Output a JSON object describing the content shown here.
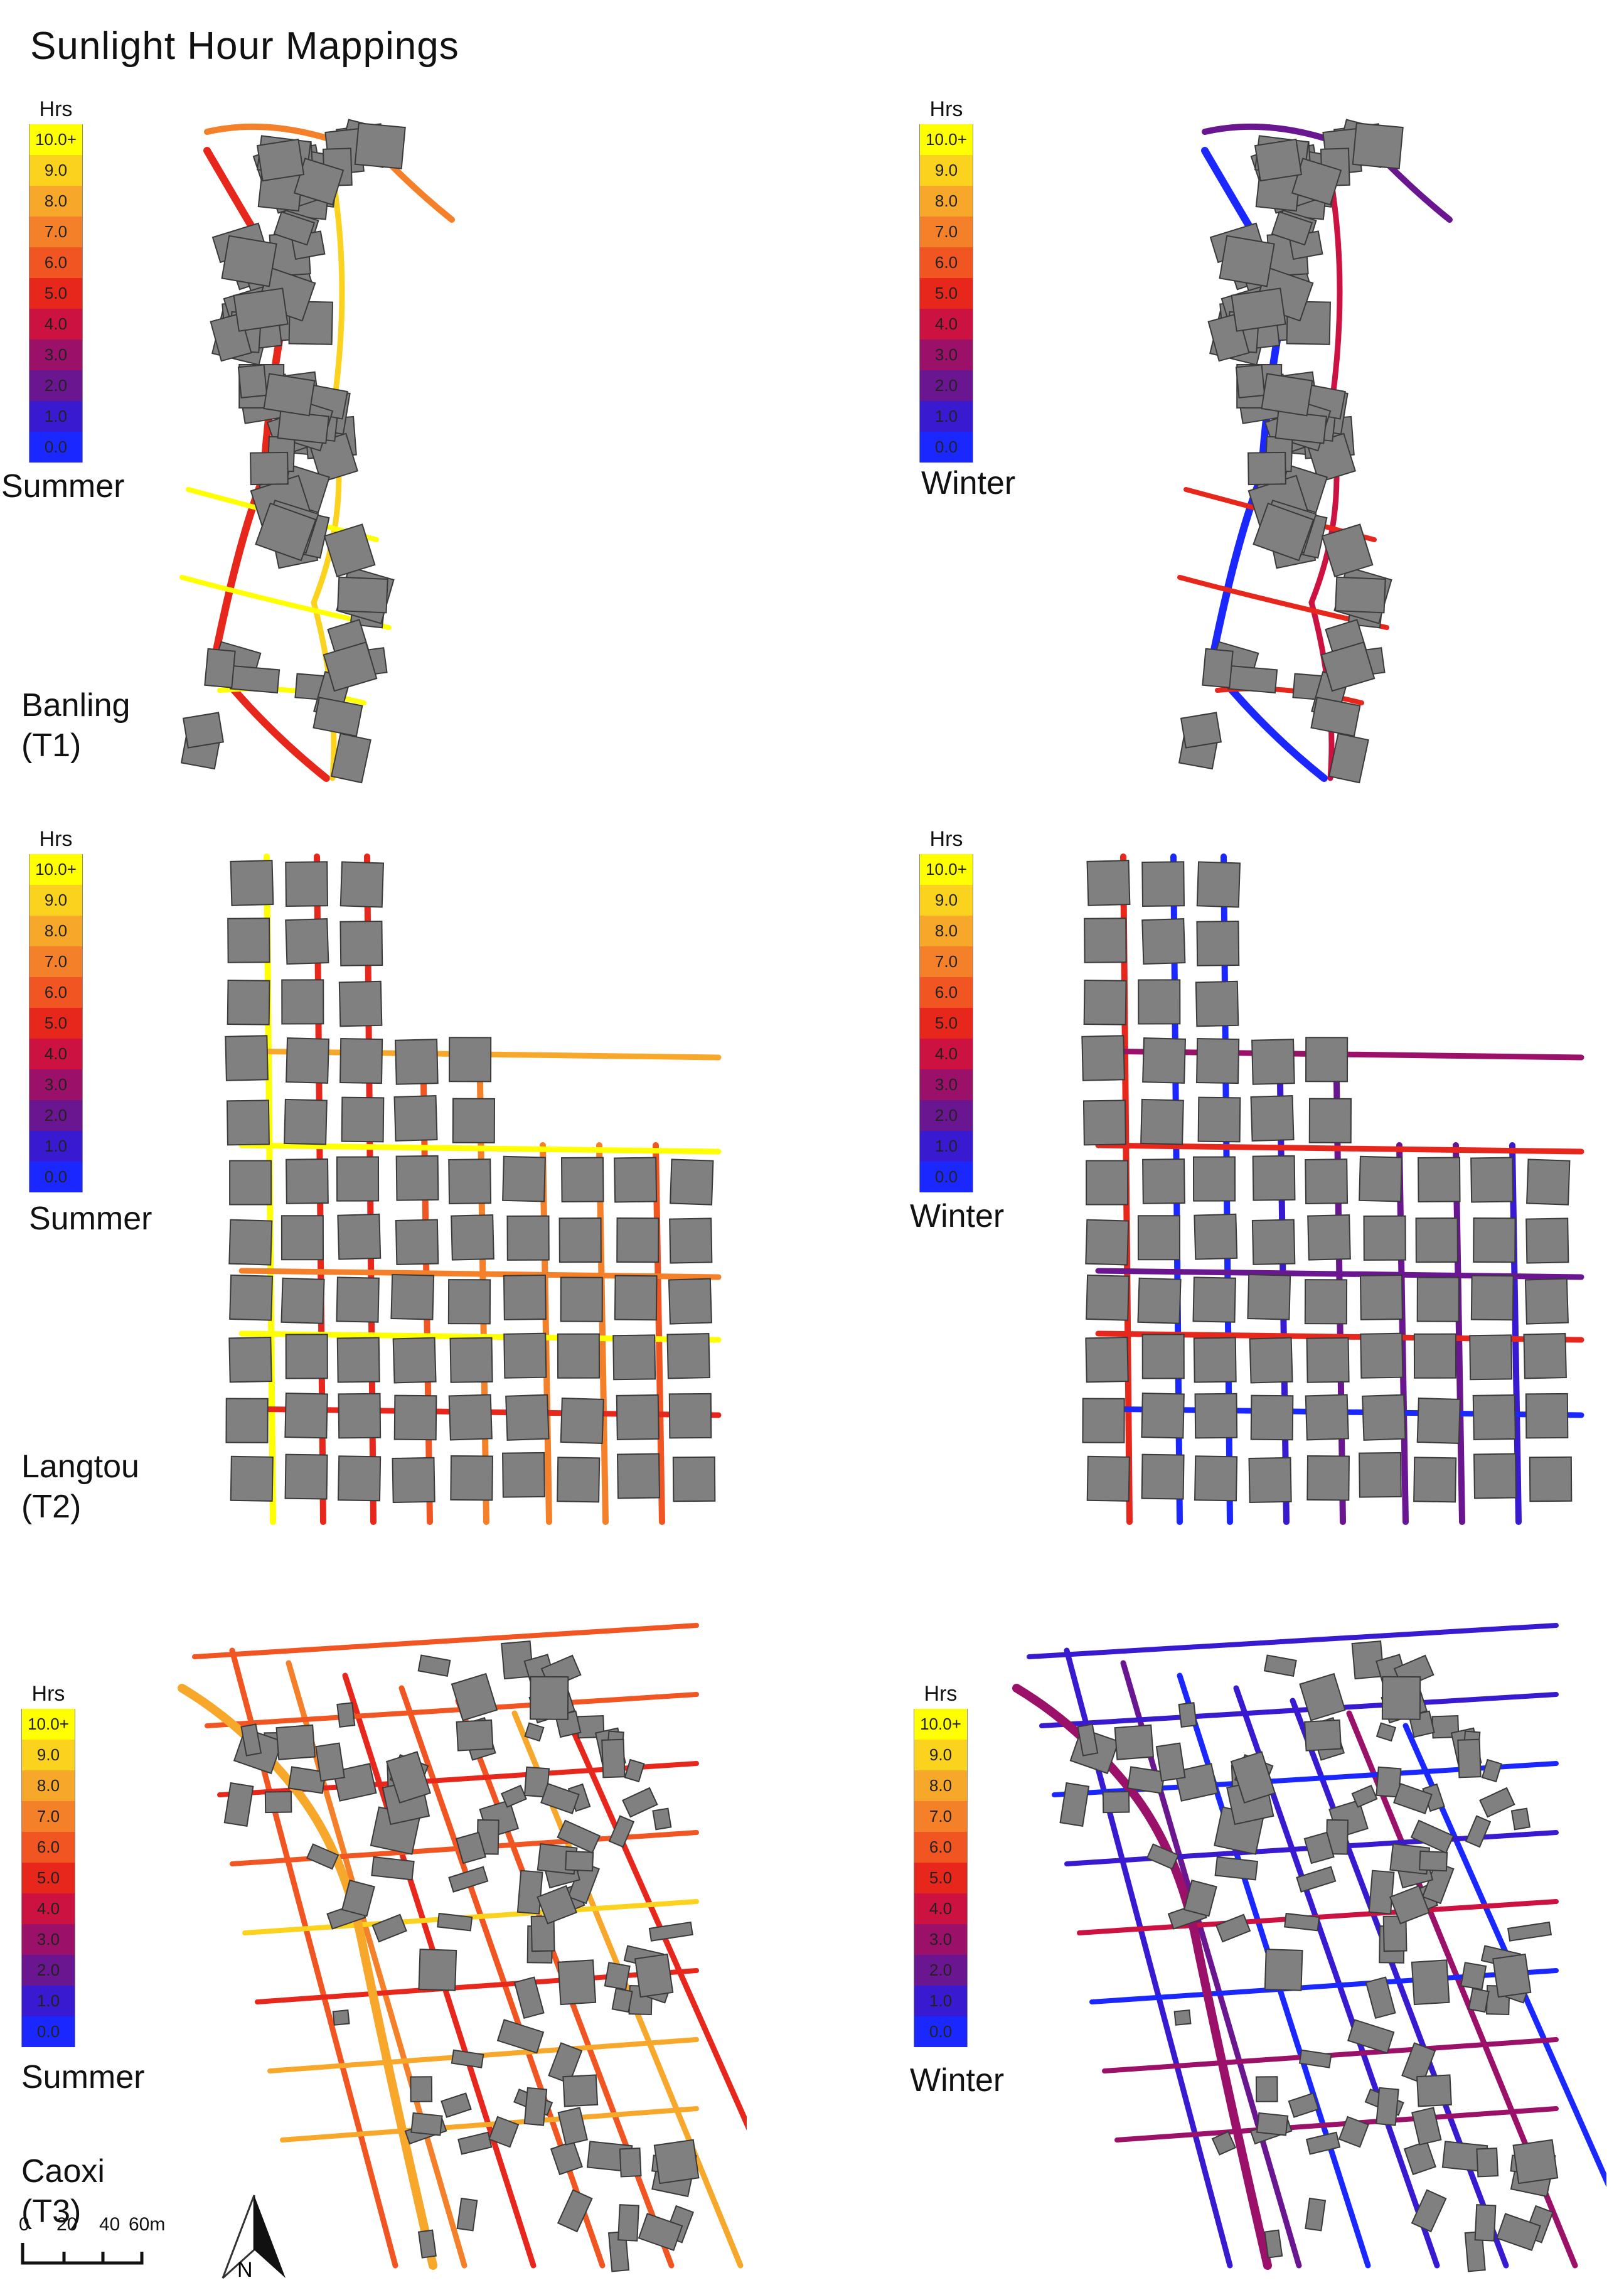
{
  "title": "Sunlight Hour  Mappings",
  "legend": {
    "unit": "Hrs",
    "levels": [
      {
        "label": "10.0+",
        "color": "#ffff00"
      },
      {
        "label": "9.0",
        "color": "#fbd21e"
      },
      {
        "label": "8.0",
        "color": "#f7a82a"
      },
      {
        "label": "7.0",
        "color": "#f4802a"
      },
      {
        "label": "6.0",
        "color": "#f05522"
      },
      {
        "label": "5.0",
        "color": "#e8271c"
      },
      {
        "label": "4.0",
        "color": "#cc1240"
      },
      {
        "label": "3.0",
        "color": "#9b1068"
      },
      {
        "label": "2.0",
        "color": "#6a1690"
      },
      {
        "label": "1.0",
        "color": "#3a1ad0"
      },
      {
        "label": "0.0",
        "color": "#1a28ff"
      }
    ]
  },
  "seasons": {
    "summer": "Summer",
    "winter": "Winter"
  },
  "sites": [
    {
      "name": "Banling",
      "code": "(T1)"
    },
    {
      "name": "Langtou",
      "code": "(T2)"
    },
    {
      "name": "Caoxi",
      "code": "(T3)"
    }
  ],
  "scale_bar": {
    "ticks": [
      "0",
      "20",
      "40",
      "60m"
    ]
  },
  "north_arrow": {
    "label": "N",
    "icon": "north-arrow-icon"
  },
  "colors": {
    "building": "#808080",
    "building_stroke": "#3a3a3a",
    "summer_street": "#f5a623",
    "winter_street": "#2a2ae0"
  }
}
